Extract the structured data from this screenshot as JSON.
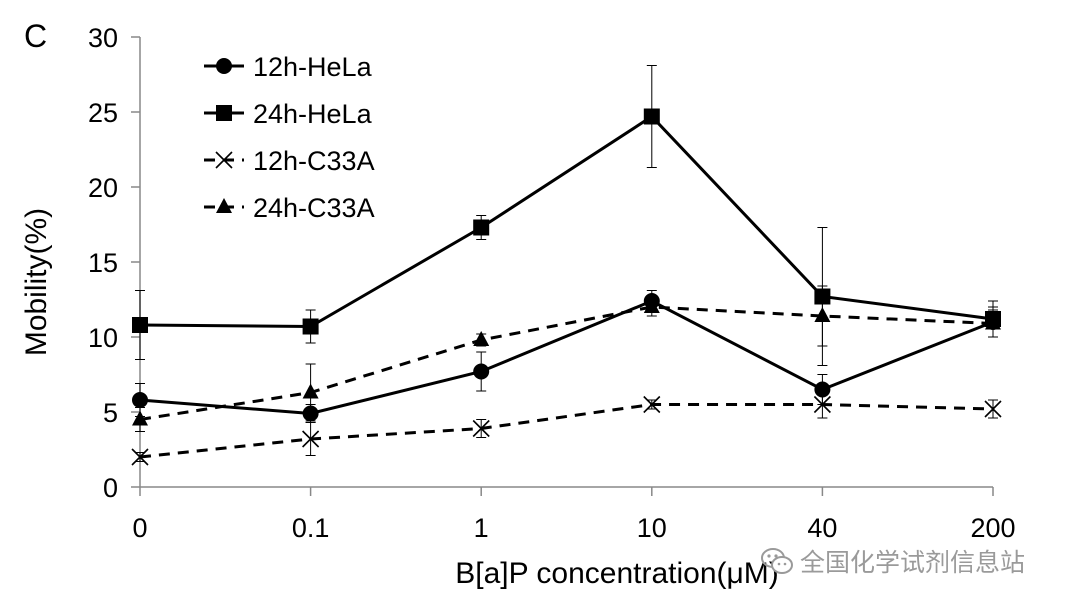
{
  "chart_data": {
    "type": "line",
    "panel_label": "C",
    "xlabel": "B[a]P concentration(μM)",
    "ylabel": "Mobility(%)",
    "categories": [
      "0",
      "0.1",
      "1",
      "10",
      "40",
      "200"
    ],
    "ylim": [
      0,
      30
    ],
    "yticks": [
      0,
      5,
      10,
      15,
      20,
      25,
      30
    ],
    "grid": false,
    "legend_position": "top-left",
    "series": [
      {
        "name": "12h-HeLa",
        "marker": "circle",
        "dash": "solid",
        "values": [
          5.8,
          4.9,
          7.7,
          12.4,
          6.5,
          11.0
        ],
        "errors": [
          1.1,
          0.6,
          1.3,
          0.7,
          1.0,
          1.0
        ]
      },
      {
        "name": "24h-HeLa",
        "marker": "square",
        "dash": "solid",
        "values": [
          10.8,
          10.7,
          17.3,
          24.7,
          12.7,
          11.2
        ],
        "errors": [
          2.3,
          1.1,
          0.8,
          3.4,
          4.6,
          1.2
        ]
      },
      {
        "name": "12h-C33A",
        "marker": "x",
        "dash": "dashed",
        "values": [
          2.0,
          3.2,
          3.9,
          5.5,
          5.5,
          5.2
        ],
        "errors": [
          0.3,
          1.1,
          0.6,
          0.3,
          0.9,
          0.6
        ]
      },
      {
        "name": "24h-C33A",
        "marker": "triangle",
        "dash": "dashed",
        "values": [
          4.5,
          6.3,
          9.8,
          12.0,
          11.4,
          10.9
        ],
        "errors": [
          0.8,
          1.9,
          0.4,
          0.6,
          2.0,
          0.9
        ]
      }
    ]
  },
  "watermark": {
    "text": "全国化学试剂信息站",
    "icon": "wechat-icon"
  }
}
